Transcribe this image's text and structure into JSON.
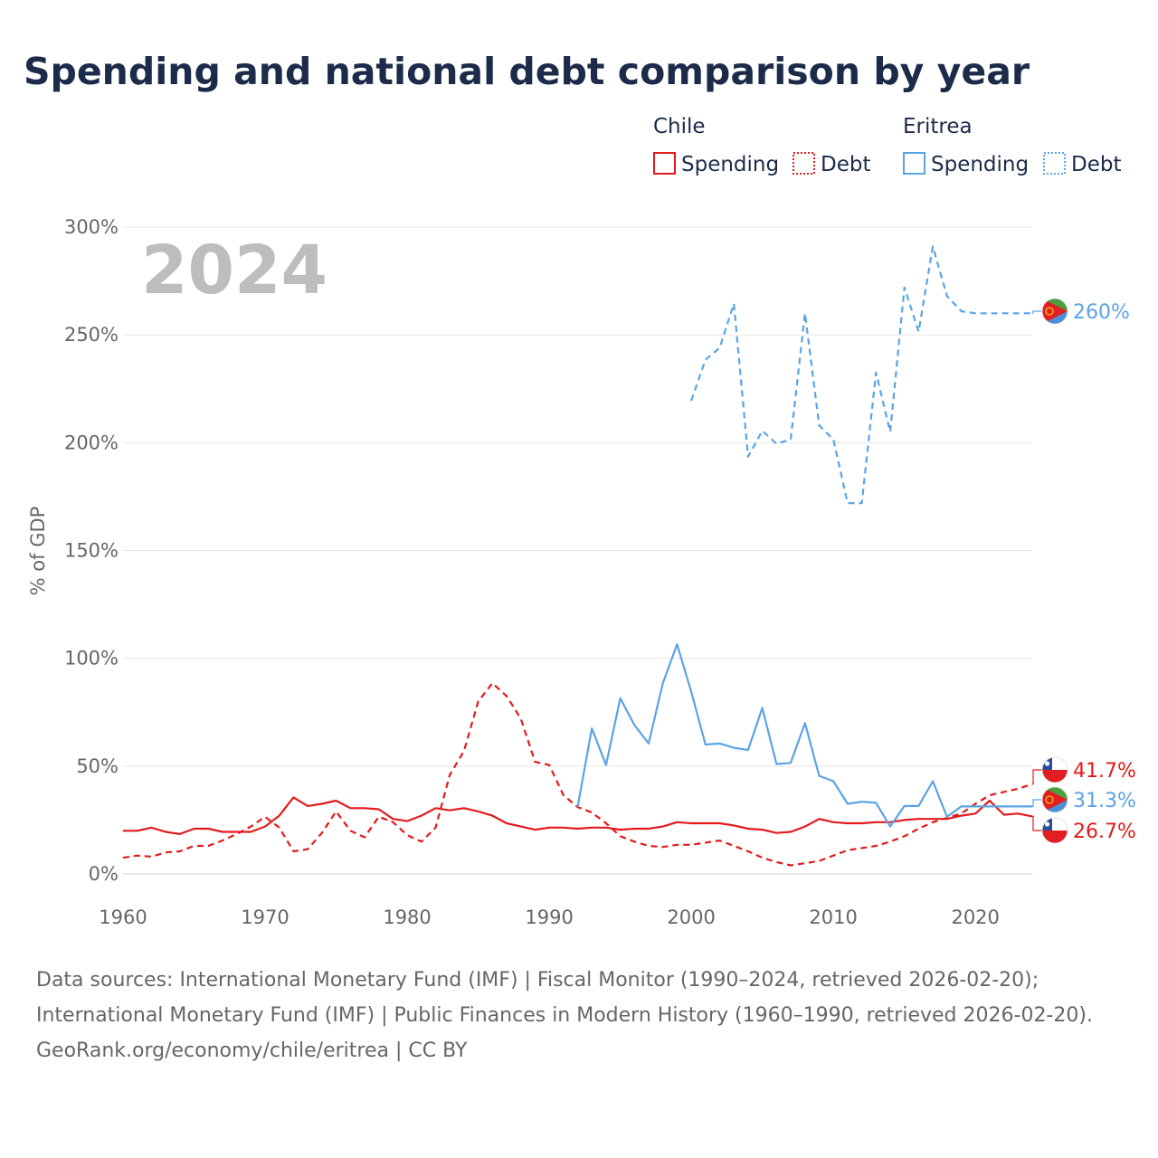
{
  "title": "Spending and national debt comparison by year",
  "year_label": "2024",
  "legend": {
    "groups": [
      {
        "name": "Chile",
        "color": "#e31a1c",
        "items": [
          "Spending",
          "Debt"
        ]
      },
      {
        "name": "Eritrea",
        "color": "#5ba3e6",
        "items": [
          "Spending",
          "Debt"
        ]
      }
    ]
  },
  "end_labels": {
    "eritrea_debt": "260%",
    "chile_debt": "41.7%",
    "eritrea_spending": "31.3%",
    "chile_spending": "26.7%"
  },
  "footer": {
    "sources": "Data sources: International Monetary Fund (IMF) | Fiscal Monitor (1990–2024, retrieved 2026-02-20); International Monetary Fund (IMF) | Public Finances in Modern History (1960–1990, retrieved 2026-02-20).",
    "credit": "GeoRank.org/economy/chile/eritrea | CC BY"
  },
  "colors": {
    "chile": "#e31a1c",
    "eritrea": "#5ba3e6",
    "grid": "#e5e5e5",
    "title": "#1c2b4a"
  },
  "chart_data": {
    "type": "line",
    "title": "Spending and national debt comparison by year",
    "xlabel": "",
    "ylabel": "% of GDP",
    "xlim": [
      1960,
      2024
    ],
    "ylim": [
      0,
      300
    ],
    "xticks": [
      1960,
      1970,
      1980,
      1990,
      2000,
      2010,
      2020
    ],
    "yticks": [
      0,
      50,
      100,
      150,
      200,
      250,
      300
    ],
    "ytick_labels": [
      "0%",
      "50%",
      "100%",
      "150%",
      "200%",
      "250%",
      "300%"
    ],
    "series": [
      {
        "name": "Chile Spending",
        "country": "Chile",
        "metric": "Spending",
        "style": "solid",
        "color": "#e31a1c",
        "x": [
          1960,
          1961,
          1962,
          1963,
          1964,
          1965,
          1966,
          1967,
          1968,
          1969,
          1970,
          1971,
          1972,
          1973,
          1974,
          1975,
          1976,
          1977,
          1978,
          1979,
          1980,
          1981,
          1982,
          1983,
          1984,
          1985,
          1986,
          1987,
          1988,
          1989,
          1990,
          1991,
          1992,
          1993,
          1994,
          1995,
          1996,
          1997,
          1998,
          1999,
          2000,
          2001,
          2002,
          2003,
          2004,
          2005,
          2006,
          2007,
          2008,
          2009,
          2010,
          2011,
          2012,
          2013,
          2014,
          2015,
          2016,
          2017,
          2018,
          2019,
          2020,
          2021,
          2022,
          2023,
          2024
        ],
        "values": [
          20,
          20,
          21.5,
          19.5,
          18.5,
          21,
          21,
          19.5,
          19.5,
          19.5,
          22,
          27,
          35.5,
          31.5,
          32.5,
          34,
          30.5,
          30.5,
          30,
          25.5,
          24.5,
          27,
          30.5,
          29.5,
          30.5,
          29,
          27,
          23.5,
          22,
          20.5,
          21.5,
          21.5,
          21,
          21.5,
          21.5,
          20.5,
          21,
          21,
          22,
          24,
          23.5,
          23.5,
          23.5,
          22.5,
          21,
          20.5,
          19,
          19.5,
          22,
          25.5,
          24,
          23.5,
          23.5,
          24,
          24,
          25,
          25.5,
          25.5,
          25.5,
          27,
          28,
          34,
          27.5,
          28,
          26.7
        ]
      },
      {
        "name": "Chile Debt",
        "country": "Chile",
        "metric": "Debt",
        "style": "dashed",
        "color": "#e31a1c",
        "x": [
          1960,
          1961,
          1962,
          1963,
          1964,
          1965,
          1966,
          1967,
          1968,
          1969,
          1970,
          1971,
          1972,
          1973,
          1974,
          1975,
          1976,
          1977,
          1978,
          1979,
          1980,
          1981,
          1982,
          1983,
          1984,
          1985,
          1986,
          1987,
          1988,
          1989,
          1990,
          1991,
          1992,
          1993,
          1994,
          1995,
          1996,
          1997,
          1998,
          1999,
          2000,
          2001,
          2002,
          2003,
          2004,
          2005,
          2006,
          2007,
          2008,
          2009,
          2010,
          2011,
          2012,
          2013,
          2014,
          2015,
          2016,
          2017,
          2018,
          2019,
          2020,
          2021,
          2022,
          2023,
          2024
        ],
        "values": [
          7.5,
          8.5,
          8,
          10,
          10.5,
          13,
          13,
          15.5,
          18.5,
          22,
          26.5,
          21.5,
          10.5,
          11.5,
          19,
          29,
          20,
          17,
          26.5,
          24,
          18,
          15,
          21.5,
          46,
          57,
          80,
          88.5,
          82.5,
          72,
          52,
          50.5,
          36.5,
          31,
          28.5,
          23.5,
          17.5,
          15,
          13,
          12.5,
          13.5,
          13.5,
          14.5,
          15.5,
          13,
          10.5,
          7.5,
          5.5,
          4,
          5,
          6,
          8.5,
          11,
          12,
          13,
          15,
          17.5,
          21,
          24,
          26,
          28,
          32.5,
          36.5,
          38,
          39.5,
          41.7
        ]
      },
      {
        "name": "Eritrea Spending",
        "country": "Eritrea",
        "metric": "Spending",
        "style": "solid",
        "color": "#5ba3e6",
        "x": [
          1992,
          1993,
          1994,
          1995,
          1996,
          1997,
          1998,
          1999,
          2000,
          2001,
          2002,
          2003,
          2004,
          2005,
          2006,
          2007,
          2008,
          2009,
          2010,
          2011,
          2012,
          2013,
          2014,
          2015,
          2016,
          2017,
          2018,
          2019,
          2020,
          2021,
          2022,
          2023,
          2024
        ],
        "values": [
          31,
          67.5,
          50.5,
          81.5,
          69,
          60.5,
          88.5,
          106.5,
          84.5,
          60,
          60.5,
          58.5,
          57.5,
          77,
          51,
          51.5,
          70,
          45.5,
          43,
          32.5,
          33.5,
          33,
          22,
          31.5,
          31.5,
          43,
          26.5,
          31.3,
          31.3,
          31.3,
          31.3,
          31.3,
          31.3
        ]
      },
      {
        "name": "Eritrea Debt",
        "country": "Eritrea",
        "metric": "Debt",
        "style": "dashed",
        "color": "#5ba3e6",
        "x": [
          2000,
          2001,
          2002,
          2003,
          2004,
          2005,
          2006,
          2007,
          2008,
          2009,
          2010,
          2011,
          2012,
          2013,
          2014,
          2015,
          2016,
          2017,
          2018,
          2019,
          2020,
          2021,
          2022,
          2023,
          2024
        ],
        "values": [
          219.5,
          238.5,
          244,
          264.5,
          193.5,
          205.5,
          199.5,
          201.5,
          260,
          208,
          201.5,
          172,
          172,
          232.5,
          205,
          272,
          251.5,
          291,
          268,
          261,
          260,
          260,
          260,
          260,
          260
        ]
      }
    ],
    "end_labels": [
      "260%",
      "41.7%",
      "31.3%",
      "26.7%"
    ],
    "year_annotation": "2024"
  }
}
